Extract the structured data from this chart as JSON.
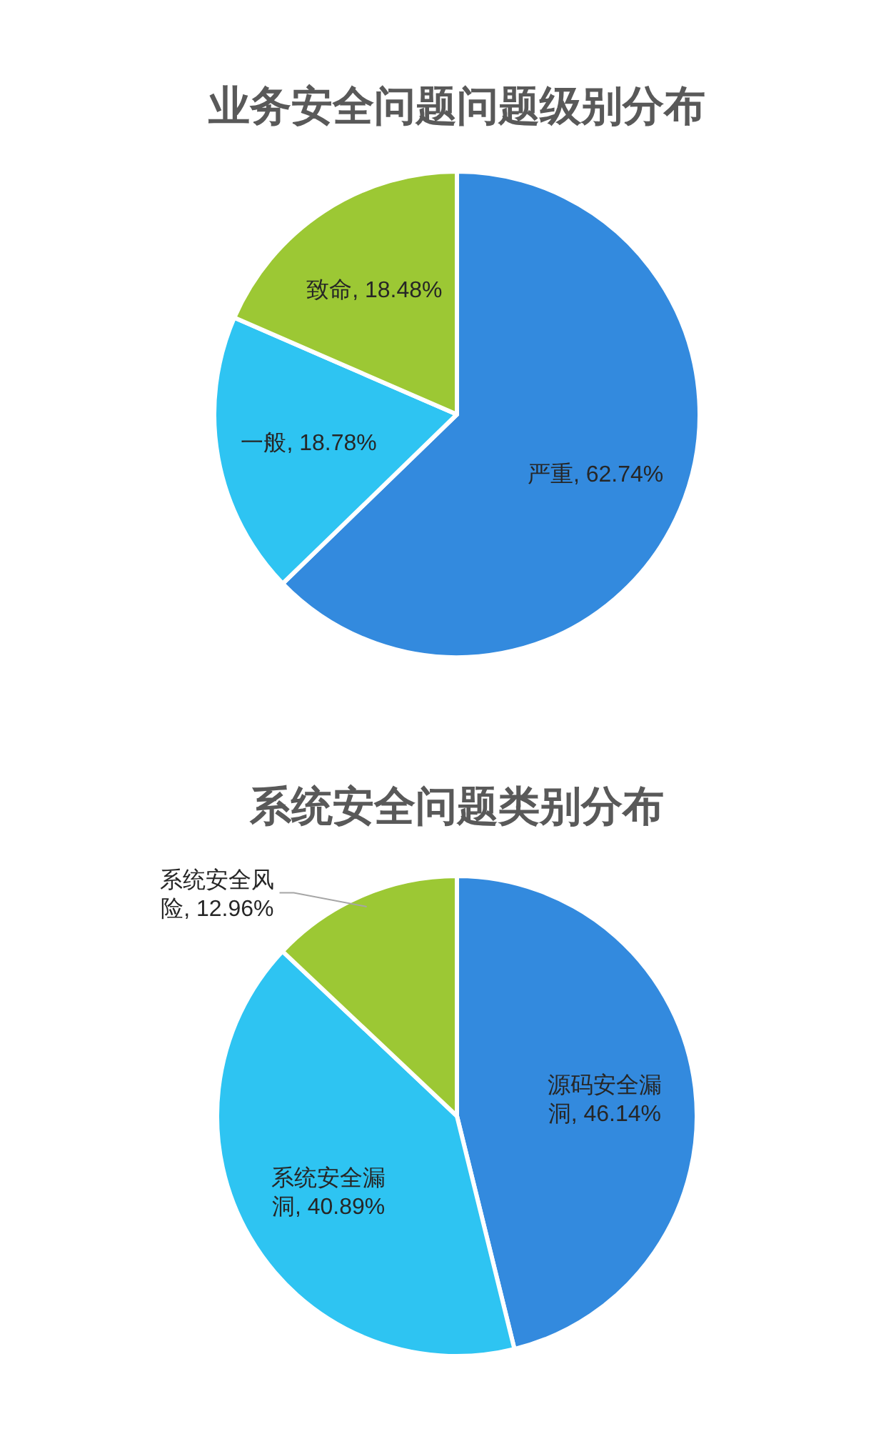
{
  "chart_data": [
    {
      "type": "pie",
      "title": "业务安全问题问题级别分布",
      "categories": [
        "严重",
        "一般",
        "致命"
      ],
      "values": [
        62.74,
        18.78,
        18.48
      ],
      "colors": [
        "#338ade",
        "#2ec4f2",
        "#9cc834"
      ],
      "value_labels": [
        ", 62.74%",
        ", 18.78%",
        ", 18.48%"
      ]
    },
    {
      "type": "pie",
      "title": "系统安全问题类别分布",
      "categories": [
        "源码安全漏洞",
        "系统安全漏洞",
        "系统安全风险"
      ],
      "values": [
        46.14,
        40.89,
        12.96
      ],
      "colors": [
        "#338ade",
        "#2ec4f2",
        "#9cc834"
      ],
      "value_labels": [
        ", 46.14%",
        ", 40.89%",
        ", 12.96%"
      ]
    }
  ]
}
